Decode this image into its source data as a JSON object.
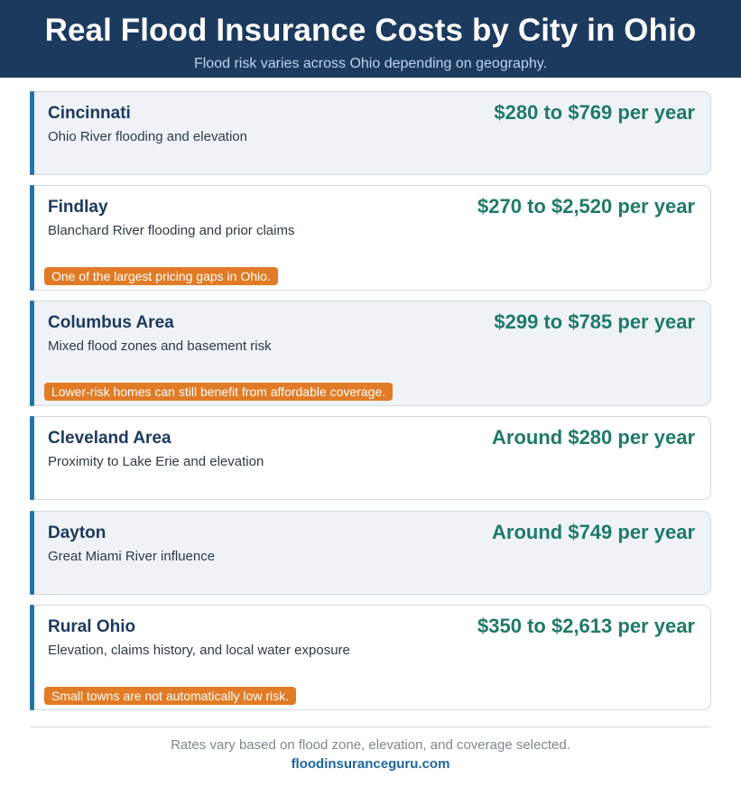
{
  "header": {
    "title": "Real Flood Insurance Costs by City in Ohio",
    "subtitle": "Flood risk varies across Ohio depending on geography."
  },
  "cards": [
    {
      "city": "Cincinnati",
      "price": "$280 to $769 per year",
      "description": "Ohio River flooding and elevation",
      "note": ""
    },
    {
      "city": "Findlay",
      "price": "$270 to $2,520 per year",
      "description": "Blanchard River flooding and prior claims",
      "note": "One of the largest pricing gaps in Ohio."
    },
    {
      "city": "Columbus Area",
      "price": "$299 to $785 per year",
      "description": "Mixed flood zones and basement risk",
      "note": "Lower-risk homes can still benefit from affordable coverage."
    },
    {
      "city": "Cleveland Area",
      "price": "Around $280 per year",
      "description": "Proximity to Lake Erie and elevation",
      "note": ""
    },
    {
      "city": "Dayton",
      "price": "Around $749 per year",
      "description": "Great Miami River influence",
      "note": ""
    },
    {
      "city": "Rural Ohio",
      "price": "$350 to $2,613 per year",
      "description": "Elevation, claims history, and local water exposure",
      "note": "Small towns are not automatically low risk."
    }
  ],
  "footer": {
    "disclaimer": "Rates vary based on flood zone, elevation, and coverage selected.",
    "site": "floodinsuranceguru.com"
  },
  "colors": {
    "header_bg": "#1c3a5e",
    "accent_bar": "#2273a8",
    "price_text": "#1f7a6a",
    "note_bg": "#e17b25",
    "link": "#1f66a0"
  }
}
